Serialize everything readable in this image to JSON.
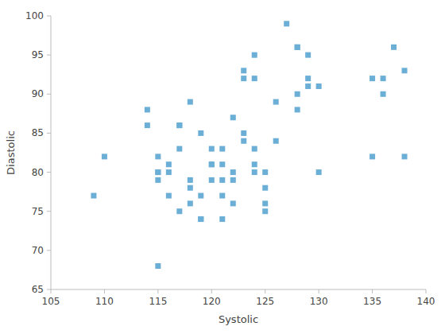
{
  "chart_data": {
    "type": "scatter",
    "x": [
      109,
      110,
      114,
      114,
      115,
      115,
      115,
      115,
      115,
      116,
      116,
      116,
      117,
      117,
      117,
      117,
      118,
      118,
      118,
      118,
      119,
      119,
      119,
      119,
      120,
      120,
      120,
      120,
      121,
      121,
      121,
      121,
      121,
      122,
      122,
      122,
      122,
      123,
      123,
      123,
      123,
      124,
      124,
      124,
      124,
      124,
      125,
      125,
      125,
      125,
      126,
      126,
      127,
      128,
      128,
      128,
      128,
      129,
      129,
      129,
      130,
      130,
      135,
      135,
      136,
      136,
      137,
      138,
      138
    ],
    "y": [
      77,
      82,
      88,
      86,
      80,
      80,
      79,
      82,
      68,
      81,
      80,
      77,
      86,
      86,
      83,
      75,
      79,
      78,
      76,
      89,
      74,
      74,
      85,
      77,
      81,
      81,
      83,
      79,
      83,
      81,
      79,
      77,
      74,
      87,
      80,
      79,
      76,
      93,
      92,
      85,
      84,
      95,
      92,
      83,
      81,
      80,
      80,
      78,
      76,
      75,
      89,
      84,
      99,
      96,
      96,
      90,
      88,
      95,
      91,
      92,
      91,
      80,
      92,
      82,
      92,
      90,
      96,
      93,
      82
    ],
    "color": "#6baed6",
    "marker": "square",
    "xlabel": "Systolic",
    "ylabel": "Diastolic",
    "xlim": [
      105,
      140
    ],
    "ylim": [
      65,
      100
    ],
    "xticks": [
      105,
      110,
      115,
      120,
      125,
      130,
      135,
      140
    ],
    "yticks": [
      65,
      70,
      75,
      80,
      85,
      90,
      95,
      100
    ]
  }
}
